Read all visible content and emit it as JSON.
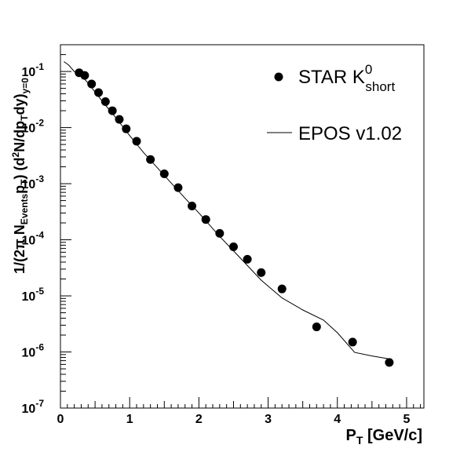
{
  "chart_data": {
    "type": "scatter",
    "title": "",
    "xlabel": {
      "main": "P",
      "sub": "T",
      "rest": " [GeV/c]"
    },
    "ylabel": {
      "p1": "1/(2π N",
      "s1": "Events",
      "p2": "p",
      "s2": "T",
      "p3": ") (d",
      "sup1": "2",
      "p4": "N/dp",
      "s3": "T",
      "p5": "dy)",
      "s4": "y=0"
    },
    "xlim": [
      0,
      5.25
    ],
    "ylim": [
      1e-07,
      0.3
    ],
    "y_scale": "log",
    "x_ticks": [
      0,
      1,
      2,
      3,
      4,
      5
    ],
    "x_tick_labels": [
      "0",
      "1",
      "2",
      "3",
      "4",
      "5"
    ],
    "y_ticks": [
      {
        "base": "10",
        "exp": "-7",
        "value": 1e-07
      },
      {
        "base": "10",
        "exp": "-6",
        "value": 1e-06
      },
      {
        "base": "10",
        "exp": "-5",
        "value": 1e-05
      },
      {
        "base": "10",
        "exp": "-4",
        "value": 0.0001
      },
      {
        "base": "10",
        "exp": "-3",
        "value": 0.001
      },
      {
        "base": "10",
        "exp": "-2",
        "value": 0.01
      },
      {
        "base": "10",
        "exp": "-1",
        "value": 0.1
      }
    ],
    "grid": false,
    "legend_position": "top-right",
    "series": [
      {
        "name": "STAR K",
        "name_sup": "0",
        "name_sub": "short",
        "type": "scatter",
        "x": [
          0.27,
          0.35,
          0.45,
          0.55,
          0.65,
          0.75,
          0.85,
          0.95,
          1.1,
          1.3,
          1.5,
          1.7,
          1.9,
          2.1,
          2.3,
          2.5,
          2.7,
          2.9,
          3.2,
          3.7,
          4.22,
          4.75
        ],
        "y": [
          0.095,
          0.085,
          0.06,
          0.042,
          0.029,
          0.02,
          0.014,
          0.0095,
          0.0057,
          0.0027,
          0.0015,
          0.00085,
          0.0004,
          0.00023,
          0.00013,
          7.5e-05,
          4.5e-05,
          2.6e-05,
          1.33e-05,
          2.8e-06,
          1.5e-06,
          6.5e-07
        ]
      },
      {
        "name": "EPOS v1.02",
        "type": "line",
        "x": [
          0.05,
          0.12,
          0.2,
          0.3,
          0.4,
          0.5,
          0.6,
          0.8,
          1.0,
          1.2,
          1.5,
          1.8,
          2.0,
          2.3,
          2.6,
          2.9,
          3.2,
          3.5,
          3.8,
          4.0,
          4.25,
          4.5,
          4.75
        ],
        "y": [
          0.15,
          0.13,
          0.1,
          0.085,
          0.062,
          0.043,
          0.03,
          0.015,
          0.0072,
          0.0036,
          0.0014,
          0.00055,
          0.0003,
          0.000115,
          4.7e-05,
          1.9e-05,
          9.2e-06,
          5.6e-06,
          3.7e-06,
          2.2e-06,
          9.8e-07,
          8.5e-07,
          7.5e-07
        ]
      }
    ]
  }
}
